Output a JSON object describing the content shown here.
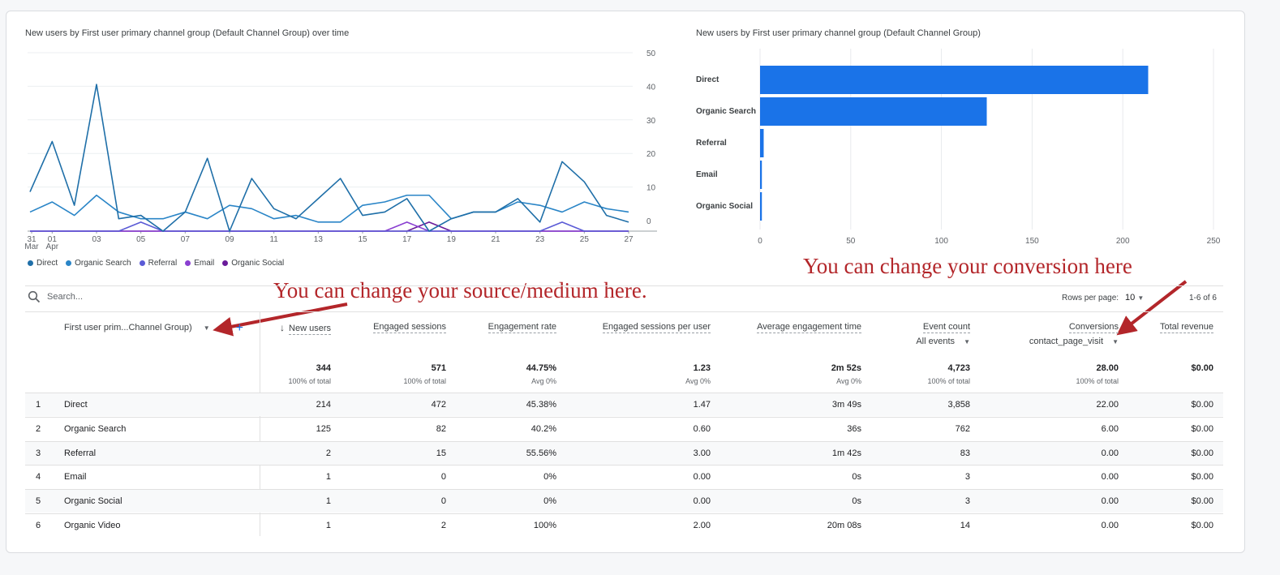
{
  "line_chart": {
    "title": "New users by First user primary channel group (Default Channel Group) over time",
    "chart_data": {
      "type": "line",
      "x_tick_labels": [
        "31\nMar",
        "01\nApr",
        "03",
        "05",
        "07",
        "09",
        "11",
        "13",
        "15",
        "17",
        "19",
        "21",
        "23",
        "25",
        "27"
      ],
      "y_tick_labels": [
        "50",
        "40",
        "30",
        "20",
        "10",
        "0"
      ],
      "ylim": [
        0,
        50
      ],
      "x_days": [
        "Mar 31",
        "Apr 1",
        "Apr 2",
        "Apr 3",
        "Apr 4",
        "Apr 5",
        "Apr 6",
        "Apr 7",
        "Apr 8",
        "Apr 9",
        "Apr 10",
        "Apr 11",
        "Apr 12",
        "Apr 13",
        "Apr 14",
        "Apr 15",
        "Apr 16",
        "Apr 17",
        "Apr 18",
        "Apr 19",
        "Apr 20",
        "Apr 21",
        "Apr 22",
        "Apr 23",
        "Apr 24",
        "Apr 25",
        "Apr 26",
        "Apr 27"
      ],
      "series": [
        {
          "name": "Direct",
          "color": "#1f6fa8",
          "values": [
            10,
            25,
            6,
            42,
            2,
            3,
            0,
            4,
            20,
            0,
            14,
            5,
            2,
            8,
            14,
            3,
            4,
            8,
            0,
            2,
            4,
            4,
            8,
            1,
            19,
            13,
            3,
            1
          ]
        },
        {
          "name": "Organic Search",
          "color": "#2a85c7",
          "values": [
            4,
            7,
            3,
            9,
            4,
            2,
            2,
            4,
            2,
            6,
            5,
            2,
            3,
            1,
            1,
            6,
            7,
            9,
            9,
            2,
            4,
            4,
            7,
            6,
            4,
            7,
            5,
            4
          ]
        },
        {
          "name": "Referral",
          "color": "#5b5bd6",
          "values": [
            0,
            0,
            0,
            0,
            0,
            1,
            0,
            0,
            0,
            0,
            0,
            0,
            0,
            0,
            0,
            0,
            0,
            0,
            0,
            0,
            0,
            0,
            0,
            0,
            1,
            0,
            0,
            0
          ]
        },
        {
          "name": "Email",
          "color": "#8a3fd1",
          "values": [
            0,
            0,
            0,
            0,
            0,
            0,
            0,
            0,
            0,
            0,
            0,
            0,
            0,
            0,
            0,
            0,
            0,
            1,
            0,
            0,
            0,
            0,
            0,
            0,
            0,
            0,
            0,
            0
          ]
        },
        {
          "name": "Organic Social",
          "color": "#6a1b9a",
          "values": [
            0,
            0,
            0,
            0,
            0,
            0,
            0,
            0,
            0,
            0,
            0,
            0,
            0,
            0,
            0,
            0,
            0,
            0,
            1,
            0,
            0,
            0,
            0,
            0,
            0,
            0,
            0,
            0
          ]
        }
      ],
      "grid": true
    }
  },
  "bar_chart": {
    "title": "New users by First user primary channel group (Default Channel Group)",
    "chart_data": {
      "type": "bar",
      "orientation": "horizontal",
      "categories": [
        "Direct",
        "Organic Search",
        "Referral",
        "Email",
        "Organic Social"
      ],
      "values": [
        214,
        125,
        2,
        1,
        1
      ],
      "x_tick_labels": [
        "0",
        "50",
        "100",
        "150",
        "200",
        "250"
      ],
      "xlim": [
        0,
        250
      ],
      "bar_color": "#1a73e8",
      "grid": true
    }
  },
  "legend": [
    {
      "label": "Direct",
      "color": "#1f6fa8"
    },
    {
      "label": "Organic Search",
      "color": "#2a85c7"
    },
    {
      "label": "Referral",
      "color": "#5b5bd6"
    },
    {
      "label": "Email",
      "color": "#8a3fd1"
    },
    {
      "label": "Organic Social",
      "color": "#6a1b9a"
    }
  ],
  "annotations": {
    "source_medium": "You can change your source/medium here.",
    "conversion": "You can change your conversion here",
    "color": "#b3262a"
  },
  "search": {
    "placeholder": "Search...",
    "icon": "search-icon"
  },
  "pagination": {
    "rows_per_page_label": "Rows per page:",
    "rows_per_page": "10",
    "range": "1-6 of 6"
  },
  "table": {
    "dimension_header": "First user prim...Channel Group)",
    "columns": [
      {
        "label": "New users",
        "sorted": true
      },
      {
        "label": "Engaged sessions"
      },
      {
        "label": "Engagement rate"
      },
      {
        "label": "Engaged sessions per user"
      },
      {
        "label": "Average engagement time"
      },
      {
        "label": "Event count",
        "sub": "All events"
      },
      {
        "label": "Conversions",
        "sub": "contact_page_visit"
      },
      {
        "label": "Total revenue"
      }
    ],
    "totals": [
      {
        "value": "344",
        "sub": "100% of total"
      },
      {
        "value": "571",
        "sub": "100% of total"
      },
      {
        "value": "44.75%",
        "sub": "Avg 0%"
      },
      {
        "value": "1.23",
        "sub": "Avg 0%"
      },
      {
        "value": "2m 52s",
        "sub": "Avg 0%"
      },
      {
        "value": "4,723",
        "sub": "100% of total"
      },
      {
        "value": "28.00",
        "sub": "100% of total"
      },
      {
        "value": "$0.00",
        "sub": ""
      }
    ],
    "rows": [
      {
        "index": "1",
        "name": "Direct",
        "cells": [
          "214",
          "472",
          "45.38%",
          "1.47",
          "3m 49s",
          "3,858",
          "22.00",
          "$0.00"
        ]
      },
      {
        "index": "2",
        "name": "Organic Search",
        "cells": [
          "125",
          "82",
          "40.2%",
          "0.60",
          "36s",
          "762",
          "6.00",
          "$0.00"
        ]
      },
      {
        "index": "3",
        "name": "Referral",
        "cells": [
          "2",
          "15",
          "55.56%",
          "3.00",
          "1m 42s",
          "83",
          "0.00",
          "$0.00"
        ]
      },
      {
        "index": "4",
        "name": "Email",
        "cells": [
          "1",
          "0",
          "0%",
          "0.00",
          "0s",
          "3",
          "0.00",
          "$0.00"
        ]
      },
      {
        "index": "5",
        "name": "Organic Social",
        "cells": [
          "1",
          "0",
          "0%",
          "0.00",
          "0s",
          "3",
          "0.00",
          "$0.00"
        ]
      },
      {
        "index": "6",
        "name": "Organic Video",
        "cells": [
          "1",
          "2",
          "100%",
          "2.00",
          "20m 08s",
          "14",
          "0.00",
          "$0.00"
        ]
      }
    ]
  }
}
